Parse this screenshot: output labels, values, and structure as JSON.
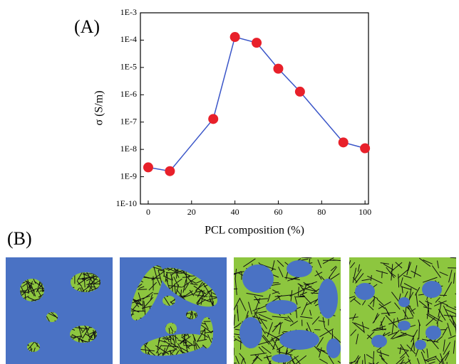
{
  "panels": {
    "a_label": "(A)",
    "b_label": "(B)"
  },
  "chart_data": {
    "type": "line",
    "yscale": "log",
    "x_label": "PCL composition (%)",
    "y_label": "σ (S/m)",
    "x": [
      0,
      10,
      30,
      40,
      50,
      60,
      70,
      90,
      100
    ],
    "series": [
      {
        "line_color": "#3a55c8",
        "marker_color": "#e8202a",
        "values": [
          2.2e-09,
          1.6e-09,
          1.3e-07,
          0.00013,
          8e-05,
          9e-06,
          1.3e-06,
          1.8e-08,
          1.1e-08
        ]
      }
    ],
    "xlim": [
      -3.6,
      101.6
    ],
    "xticks": [
      0,
      20,
      40,
      60,
      80,
      100
    ],
    "ylim": [
      1e-10,
      0.001
    ],
    "yticks": [
      {
        "value": 1e-10,
        "label": "1E-10"
      },
      {
        "value": 1e-09,
        "label": "1E-9"
      },
      {
        "value": 1e-08,
        "label": "1E-8"
      },
      {
        "value": 1e-07,
        "label": "1E-7"
      },
      {
        "value": 1e-06,
        "label": "1E-6"
      },
      {
        "value": 1e-05,
        "label": "1E-5"
      },
      {
        "value": 0.0001,
        "label": "1E-4"
      },
      {
        "value": 0.001,
        "label": "1E-3"
      }
    ]
  }
}
